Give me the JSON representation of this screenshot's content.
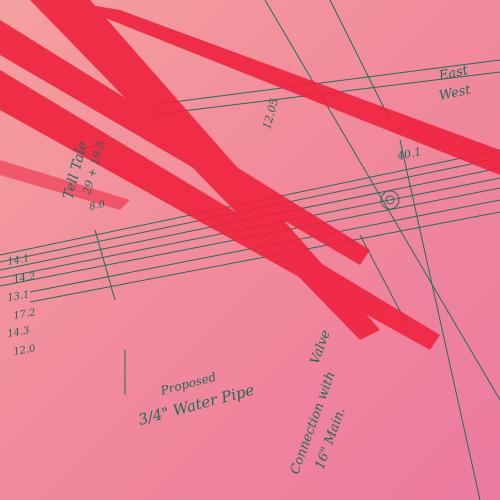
{
  "annotations": {
    "tell_tale": "Tell Tale",
    "station": "29 + 19.5",
    "east": "East",
    "west": "West",
    "elev_top": "12.05",
    "elev_right": "40.1",
    "dim": "8.0",
    "proposed": "Proposed",
    "pipe": "3/4\" Water Pipe",
    "valve": "Valve",
    "connection": "Connection with",
    "main": "16\" Main.",
    "levels": [
      "14.1",
      "14.2",
      "13.1",
      "17.2",
      "14.3",
      "12.0"
    ]
  }
}
